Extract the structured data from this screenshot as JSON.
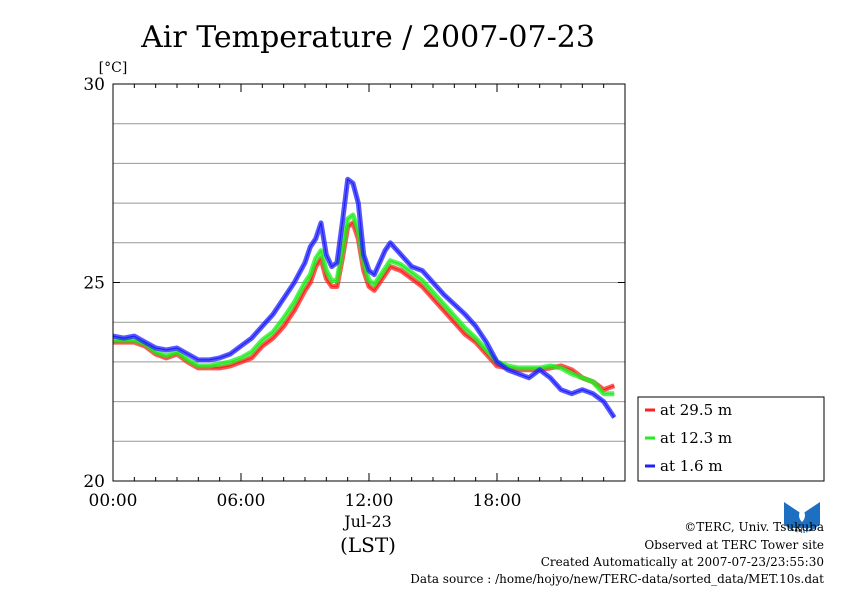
{
  "chart_data": {
    "type": "line",
    "title": "Air Temperature / 2007-07-23",
    "ylabel": "[°C]",
    "xlabel": "(LST)",
    "date_label": "Jul-23",
    "ylim": [
      20,
      30
    ],
    "xlim": [
      0,
      24
    ],
    "y_ticks": [
      {
        "value": 20,
        "label": "20"
      },
      {
        "value": 25,
        "label": "25"
      },
      {
        "value": 30,
        "label": "30"
      }
    ],
    "y_gridlines": [
      21,
      22,
      23,
      24,
      25,
      26,
      27,
      28,
      29
    ],
    "x_ticks": [
      {
        "value": 0,
        "label": "00:00"
      },
      {
        "value": 6,
        "label": "06:00"
      },
      {
        "value": 12,
        "label": "12:00"
      },
      {
        "value": 18,
        "label": "18:00"
      }
    ],
    "grid": true,
    "legend_position": "right",
    "series": [
      {
        "name": "at 29.5 m",
        "color": "#ff2020",
        "x": [
          0,
          0.5,
          1,
          1.5,
          2,
          2.5,
          3,
          3.5,
          4,
          4.5,
          5,
          5.5,
          6,
          6.5,
          7,
          7.5,
          8,
          8.5,
          9,
          9.25,
          9.5,
          9.75,
          10,
          10.25,
          10.5,
          10.75,
          11,
          11.25,
          11.5,
          11.75,
          12,
          12.25,
          12.5,
          12.75,
          13,
          13.5,
          14,
          14.5,
          15,
          15.5,
          16,
          16.5,
          17,
          17.5,
          18,
          18.5,
          19,
          19.5,
          20,
          20.5,
          21,
          21.5,
          22,
          22.5,
          23,
          23.5
        ],
        "values": [
          23.5,
          23.5,
          23.5,
          23.4,
          23.2,
          23.1,
          23.2,
          23.0,
          22.85,
          22.85,
          22.85,
          22.9,
          23.0,
          23.1,
          23.4,
          23.6,
          23.9,
          24.3,
          24.8,
          25.0,
          25.4,
          25.6,
          25.1,
          24.9,
          24.9,
          25.6,
          26.4,
          26.5,
          26.1,
          25.3,
          24.9,
          24.8,
          25.0,
          25.2,
          25.4,
          25.3,
          25.1,
          24.9,
          24.6,
          24.3,
          24.0,
          23.7,
          23.5,
          23.2,
          22.9,
          22.85,
          22.8,
          22.8,
          22.8,
          22.85,
          22.9,
          22.8,
          22.6,
          22.5,
          22.3,
          22.4
        ]
      },
      {
        "name": "at 12.3 m",
        "color": "#20ee20",
        "x": [
          0,
          0.5,
          1,
          1.5,
          2,
          2.5,
          3,
          3.5,
          4,
          4.5,
          5,
          5.5,
          6,
          6.5,
          7,
          7.5,
          8,
          8.5,
          9,
          9.25,
          9.5,
          9.75,
          10,
          10.25,
          10.5,
          10.75,
          11,
          11.25,
          11.5,
          11.75,
          12,
          12.25,
          12.5,
          12.75,
          13,
          13.5,
          14,
          14.5,
          15,
          15.5,
          16,
          16.5,
          17,
          17.5,
          18,
          18.5,
          19,
          19.5,
          20,
          20.5,
          21,
          21.5,
          22,
          22.5,
          23,
          23.5
        ],
        "values": [
          23.55,
          23.55,
          23.55,
          23.45,
          23.25,
          23.15,
          23.25,
          23.05,
          22.9,
          22.9,
          22.95,
          23.0,
          23.1,
          23.25,
          23.55,
          23.75,
          24.1,
          24.5,
          25.0,
          25.2,
          25.6,
          25.8,
          25.3,
          25.05,
          25.05,
          25.8,
          26.6,
          26.7,
          26.3,
          25.5,
          25.05,
          24.95,
          25.15,
          25.35,
          25.55,
          25.45,
          25.25,
          25.05,
          24.75,
          24.45,
          24.15,
          23.85,
          23.6,
          23.3,
          23.0,
          22.9,
          22.85,
          22.85,
          22.85,
          22.9,
          22.85,
          22.7,
          22.6,
          22.5,
          22.2,
          22.2
        ]
      },
      {
        "name": "at 1.6 m",
        "color": "#2020ff",
        "x": [
          0,
          0.5,
          1,
          1.5,
          2,
          2.5,
          3,
          3.5,
          4,
          4.5,
          5,
          5.5,
          6,
          6.5,
          7,
          7.5,
          8,
          8.5,
          9,
          9.25,
          9.5,
          9.75,
          10,
          10.25,
          10.5,
          10.75,
          11,
          11.25,
          11.5,
          11.75,
          12,
          12.25,
          12.5,
          12.75,
          13,
          13.5,
          14,
          14.5,
          15,
          15.5,
          16,
          16.5,
          17,
          17.5,
          18,
          18.5,
          19,
          19.5,
          20,
          20.5,
          21,
          21.5,
          22,
          22.5,
          23,
          23.5
        ],
        "values": [
          23.65,
          23.6,
          23.65,
          23.5,
          23.35,
          23.3,
          23.35,
          23.2,
          23.05,
          23.05,
          23.1,
          23.2,
          23.4,
          23.6,
          23.9,
          24.2,
          24.6,
          25.0,
          25.5,
          25.9,
          26.1,
          26.5,
          25.7,
          25.4,
          25.5,
          26.5,
          27.6,
          27.5,
          27.0,
          25.7,
          25.3,
          25.2,
          25.5,
          25.8,
          26.0,
          25.7,
          25.4,
          25.3,
          25.0,
          24.7,
          24.45,
          24.2,
          23.9,
          23.5,
          23.0,
          22.8,
          22.7,
          22.6,
          22.8,
          22.6,
          22.3,
          22.2,
          22.3,
          22.2,
          22.0,
          21.6
        ]
      }
    ]
  },
  "footer": {
    "copyright": "©TERC, Univ. Tsukuba",
    "observed": "Observed at TERC Tower site",
    "created": "Created Automatically at 2007-07-23/23:55:30",
    "source": "Data source : /home/hojyo/new/TERC-data/sorted_data/MET.10s.dat",
    "logo_text": "TERC"
  }
}
